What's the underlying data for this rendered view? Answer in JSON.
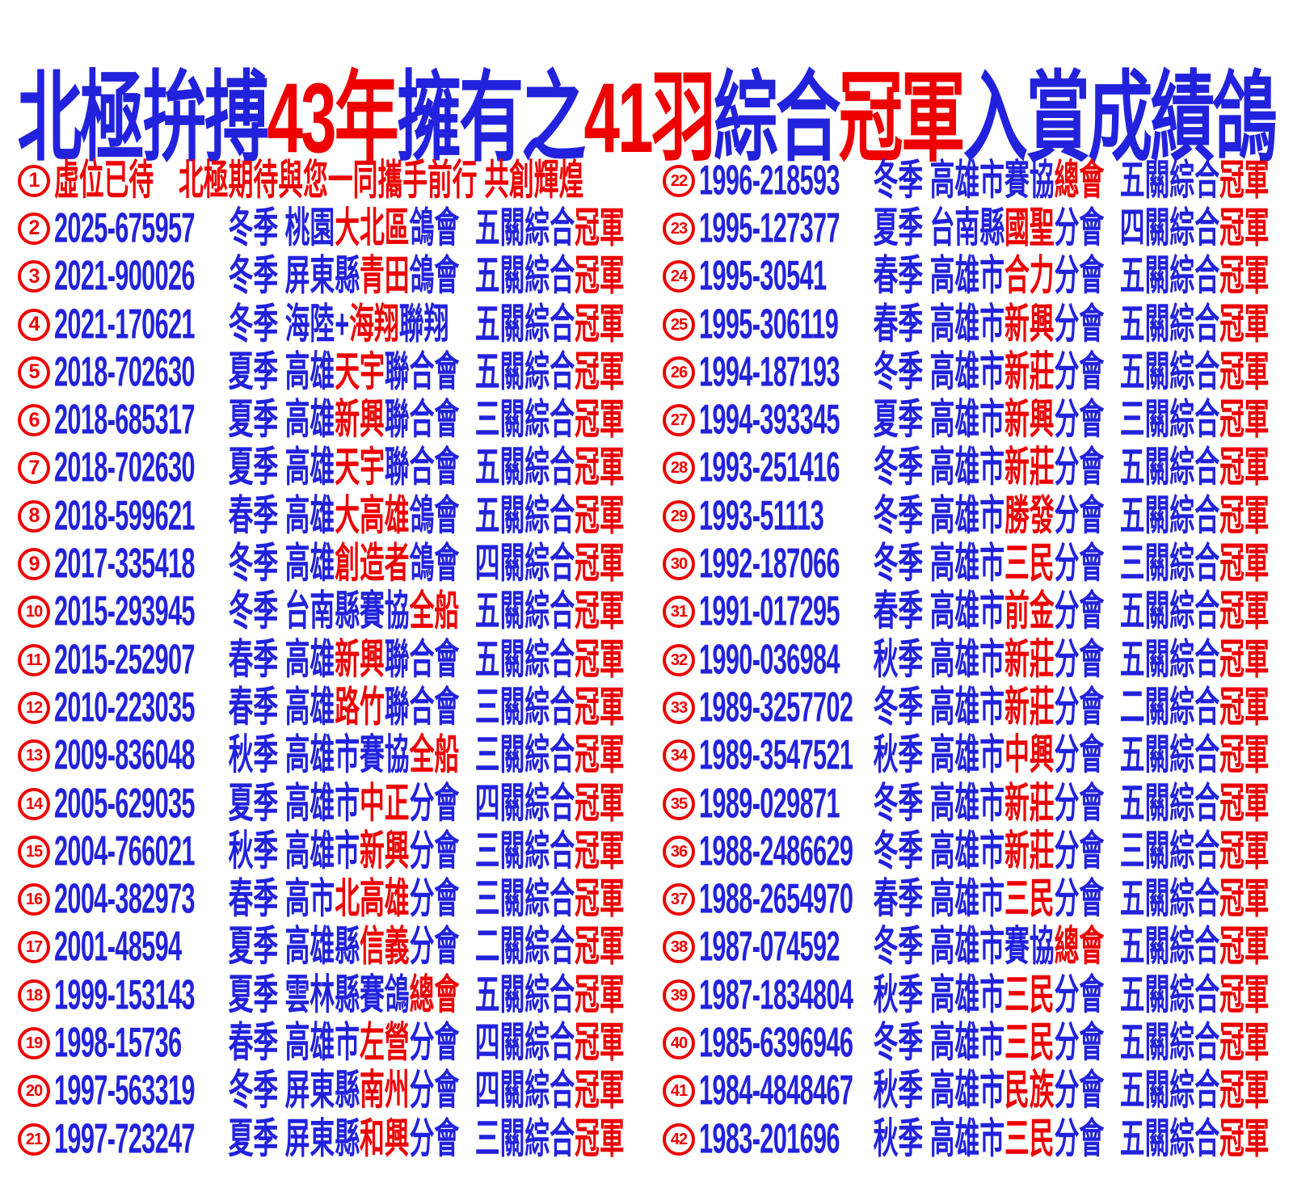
{
  "colors": {
    "blue": "#2222dd",
    "red": "#ee0000",
    "background": "#ffffff"
  },
  "title": {
    "segments": [
      {
        "t": "北極拚搏",
        "c": "b"
      },
      {
        "t": "43年",
        "c": "r"
      },
      {
        "t": "擁有之",
        "c": "b"
      },
      {
        "t": "41羽",
        "c": "r"
      },
      {
        "t": "綜合",
        "c": "b"
      },
      {
        "t": "冠軍",
        "c": "r"
      },
      {
        "t": "入賞成績鴿",
        "c": "b"
      }
    ]
  },
  "rows": [
    {
      "num": "1",
      "wide": [
        {
          "t": "虛位已待　北極期待與您一同攜手前行 共創輝煌",
          "c": "r"
        }
      ]
    },
    {
      "num": "2",
      "id": "2025-675957",
      "season": "冬季",
      "club": [
        {
          "t": "桃園",
          "c": "b"
        },
        {
          "t": "大北區",
          "c": "r"
        },
        {
          "t": "鴿會",
          "c": "b"
        }
      ],
      "award": [
        {
          "t": "五關綜合",
          "c": "b"
        },
        {
          "t": "冠軍",
          "c": "r"
        }
      ]
    },
    {
      "num": "3",
      "id": "2021-900026",
      "season": "冬季",
      "club": [
        {
          "t": "屏東縣",
          "c": "b"
        },
        {
          "t": "青田",
          "c": "r"
        },
        {
          "t": "鴿會",
          "c": "b"
        }
      ],
      "award": [
        {
          "t": "五關綜合",
          "c": "b"
        },
        {
          "t": "冠軍",
          "c": "r"
        }
      ]
    },
    {
      "num": "4",
      "id": "2021-170621",
      "season": "冬季",
      "club": [
        {
          "t": "海陸+",
          "c": "b"
        },
        {
          "t": "海翔",
          "c": "r"
        },
        {
          "t": "聯翔",
          "c": "b"
        }
      ],
      "award": [
        {
          "t": "五關綜合",
          "c": "b"
        },
        {
          "t": "冠軍",
          "c": "r"
        }
      ]
    },
    {
      "num": "5",
      "id": "2018-702630",
      "season": "夏季",
      "club": [
        {
          "t": "高雄",
          "c": "b"
        },
        {
          "t": "天宇",
          "c": "r"
        },
        {
          "t": "聯合會",
          "c": "b"
        }
      ],
      "award": [
        {
          "t": "五關綜合",
          "c": "b"
        },
        {
          "t": "冠軍",
          "c": "r"
        }
      ]
    },
    {
      "num": "6",
      "id": "2018-685317",
      "season": "夏季",
      "club": [
        {
          "t": "高雄",
          "c": "b"
        },
        {
          "t": "新興",
          "c": "r"
        },
        {
          "t": "聯合會",
          "c": "b"
        }
      ],
      "award": [
        {
          "t": "三關綜合",
          "c": "b"
        },
        {
          "t": "冠軍",
          "c": "r"
        }
      ]
    },
    {
      "num": "7",
      "id": "2018-702630",
      "season": "夏季",
      "club": [
        {
          "t": "高雄",
          "c": "b"
        },
        {
          "t": "天宇",
          "c": "r"
        },
        {
          "t": "聯合會",
          "c": "b"
        }
      ],
      "award": [
        {
          "t": "五關綜合",
          "c": "b"
        },
        {
          "t": "冠軍",
          "c": "r"
        }
      ]
    },
    {
      "num": "8",
      "id": "2018-599621",
      "season": "春季",
      "club": [
        {
          "t": "高雄",
          "c": "b"
        },
        {
          "t": "大高雄",
          "c": "r"
        },
        {
          "t": "鴿會",
          "c": "b"
        }
      ],
      "award": [
        {
          "t": "五關綜合",
          "c": "b"
        },
        {
          "t": "冠軍",
          "c": "r"
        }
      ]
    },
    {
      "num": "9",
      "id": "2017-335418",
      "season": "冬季",
      "club": [
        {
          "t": "高雄",
          "c": "b"
        },
        {
          "t": "創造者",
          "c": "r"
        },
        {
          "t": "鴿會",
          "c": "b"
        }
      ],
      "award": [
        {
          "t": "四關綜合",
          "c": "b"
        },
        {
          "t": "冠軍",
          "c": "r"
        }
      ]
    },
    {
      "num": "10",
      "id": "2015-293945",
      "season": "冬季",
      "club": [
        {
          "t": "台南縣賽協",
          "c": "b"
        },
        {
          "t": "全船",
          "c": "r"
        }
      ],
      "award": [
        {
          "t": "五關綜合",
          "c": "b"
        },
        {
          "t": "冠軍",
          "c": "r"
        }
      ]
    },
    {
      "num": "11",
      "id": "2015-252907",
      "season": "春季",
      "club": [
        {
          "t": "高雄",
          "c": "b"
        },
        {
          "t": "新興",
          "c": "r"
        },
        {
          "t": "聯合會",
          "c": "b"
        }
      ],
      "award": [
        {
          "t": "五關綜合",
          "c": "b"
        },
        {
          "t": "冠軍",
          "c": "r"
        }
      ]
    },
    {
      "num": "12",
      "id": "2010-223035",
      "season": "春季",
      "club": [
        {
          "t": "高雄",
          "c": "b"
        },
        {
          "t": "路竹",
          "c": "r"
        },
        {
          "t": "聯合會",
          "c": "b"
        }
      ],
      "award": [
        {
          "t": "三關綜合",
          "c": "b"
        },
        {
          "t": "冠軍",
          "c": "r"
        }
      ]
    },
    {
      "num": "13",
      "id": "2009-836048",
      "season": "秋季",
      "club": [
        {
          "t": "高雄市賽協",
          "c": "b"
        },
        {
          "t": "全船",
          "c": "r"
        }
      ],
      "award": [
        {
          "t": "三關綜合",
          "c": "b"
        },
        {
          "t": "冠軍",
          "c": "r"
        }
      ]
    },
    {
      "num": "14",
      "id": "2005-629035",
      "season": "夏季",
      "club": [
        {
          "t": "高雄市",
          "c": "b"
        },
        {
          "t": "中正",
          "c": "r"
        },
        {
          "t": "分會",
          "c": "b"
        }
      ],
      "award": [
        {
          "t": "四關綜合",
          "c": "b"
        },
        {
          "t": "冠軍",
          "c": "r"
        }
      ]
    },
    {
      "num": "15",
      "id": "2004-766021",
      "season": "秋季",
      "club": [
        {
          "t": "高雄市",
          "c": "b"
        },
        {
          "t": "新興",
          "c": "r"
        },
        {
          "t": "分會",
          "c": "b"
        }
      ],
      "award": [
        {
          "t": "三關綜合",
          "c": "b"
        },
        {
          "t": "冠軍",
          "c": "r"
        }
      ]
    },
    {
      "num": "16",
      "id": "2004-382973",
      "season": "春季",
      "club": [
        {
          "t": "高市",
          "c": "b"
        },
        {
          "t": "北高雄",
          "c": "r"
        },
        {
          "t": "分會",
          "c": "b"
        }
      ],
      "award": [
        {
          "t": "三關綜合",
          "c": "b"
        },
        {
          "t": "冠軍",
          "c": "r"
        }
      ]
    },
    {
      "num": "17",
      "id": "2001-48594",
      "season": "夏季",
      "club": [
        {
          "t": "高雄縣",
          "c": "b"
        },
        {
          "t": "信義",
          "c": "r"
        },
        {
          "t": "分會",
          "c": "b"
        }
      ],
      "award": [
        {
          "t": "二關綜合",
          "c": "b"
        },
        {
          "t": "冠軍",
          "c": "r"
        }
      ]
    },
    {
      "num": "18",
      "id": "1999-153143",
      "season": "夏季",
      "club": [
        {
          "t": "雲林縣賽鴿",
          "c": "b"
        },
        {
          "t": "總會",
          "c": "r"
        }
      ],
      "award": [
        {
          "t": "五關綜合",
          "c": "b"
        },
        {
          "t": "冠軍",
          "c": "r"
        }
      ]
    },
    {
      "num": "19",
      "id": "1998-15736",
      "season": "春季",
      "club": [
        {
          "t": "高雄市",
          "c": "b"
        },
        {
          "t": "左營",
          "c": "r"
        },
        {
          "t": "分會",
          "c": "b"
        }
      ],
      "award": [
        {
          "t": "四關綜合",
          "c": "b"
        },
        {
          "t": "冠軍",
          "c": "r"
        }
      ]
    },
    {
      "num": "20",
      "id": "1997-563319",
      "season": "冬季",
      "club": [
        {
          "t": "屏東縣",
          "c": "b"
        },
        {
          "t": "南州",
          "c": "r"
        },
        {
          "t": "分會",
          "c": "b"
        }
      ],
      "award": [
        {
          "t": "四關綜合",
          "c": "b"
        },
        {
          "t": "冠軍",
          "c": "r"
        }
      ]
    },
    {
      "num": "21",
      "id": "1997-723247",
      "season": "夏季",
      "club": [
        {
          "t": "屏東縣",
          "c": "b"
        },
        {
          "t": "和興",
          "c": "r"
        },
        {
          "t": "分會",
          "c": "b"
        }
      ],
      "award": [
        {
          "t": "三關綜合",
          "c": "b"
        },
        {
          "t": "冠軍",
          "c": "r"
        }
      ]
    },
    {
      "num": "22",
      "id": "1996-218593",
      "season": "冬季",
      "club": [
        {
          "t": "高雄市賽協",
          "c": "b"
        },
        {
          "t": "總會",
          "c": "r"
        }
      ],
      "award": [
        {
          "t": "五關綜合",
          "c": "b"
        },
        {
          "t": "冠軍",
          "c": "r"
        }
      ]
    },
    {
      "num": "23",
      "id": "1995-127377",
      "season": "夏季",
      "club": [
        {
          "t": "台南縣",
          "c": "b"
        },
        {
          "t": "國聖",
          "c": "r"
        },
        {
          "t": "分會",
          "c": "b"
        }
      ],
      "award": [
        {
          "t": "四關綜合",
          "c": "b"
        },
        {
          "t": "冠軍",
          "c": "r"
        }
      ]
    },
    {
      "num": "24",
      "id": "1995-30541",
      "season": "春季",
      "club": [
        {
          "t": "高雄市",
          "c": "b"
        },
        {
          "t": "合力",
          "c": "r"
        },
        {
          "t": "分會",
          "c": "b"
        }
      ],
      "award": [
        {
          "t": "五關綜合",
          "c": "b"
        },
        {
          "t": "冠軍",
          "c": "r"
        }
      ]
    },
    {
      "num": "25",
      "id": "1995-306119",
      "season": "春季",
      "club": [
        {
          "t": "高雄市",
          "c": "b"
        },
        {
          "t": "新興",
          "c": "r"
        },
        {
          "t": "分會",
          "c": "b"
        }
      ],
      "award": [
        {
          "t": "五關綜合",
          "c": "b"
        },
        {
          "t": "冠軍",
          "c": "r"
        }
      ]
    },
    {
      "num": "26",
      "id": "1994-187193",
      "season": "冬季",
      "club": [
        {
          "t": "高雄市",
          "c": "b"
        },
        {
          "t": "新莊",
          "c": "r"
        },
        {
          "t": "分會",
          "c": "b"
        }
      ],
      "award": [
        {
          "t": "五關綜合",
          "c": "b"
        },
        {
          "t": "冠軍",
          "c": "r"
        }
      ]
    },
    {
      "num": "27",
      "id": "1994-393345",
      "season": "夏季",
      "club": [
        {
          "t": "高雄市",
          "c": "b"
        },
        {
          "t": "新興",
          "c": "r"
        },
        {
          "t": "分會",
          "c": "b"
        }
      ],
      "award": [
        {
          "t": "三關綜合",
          "c": "b"
        },
        {
          "t": "冠軍",
          "c": "r"
        }
      ]
    },
    {
      "num": "28",
      "id": "1993-251416",
      "season": "冬季",
      "club": [
        {
          "t": "高雄市",
          "c": "b"
        },
        {
          "t": "新莊",
          "c": "r"
        },
        {
          "t": "分會",
          "c": "b"
        }
      ],
      "award": [
        {
          "t": "五關綜合",
          "c": "b"
        },
        {
          "t": "冠軍",
          "c": "r"
        }
      ]
    },
    {
      "num": "29",
      "id": "1993-51113",
      "season": "冬季",
      "club": [
        {
          "t": "高雄市",
          "c": "b"
        },
        {
          "t": "勝發",
          "c": "r"
        },
        {
          "t": "分會",
          "c": "b"
        }
      ],
      "award": [
        {
          "t": "五關綜合",
          "c": "b"
        },
        {
          "t": "冠軍",
          "c": "r"
        }
      ]
    },
    {
      "num": "30",
      "id": "1992-187066",
      "season": "冬季",
      "club": [
        {
          "t": "高雄市",
          "c": "b"
        },
        {
          "t": "三民",
          "c": "r"
        },
        {
          "t": "分會",
          "c": "b"
        }
      ],
      "award": [
        {
          "t": "三關綜合",
          "c": "b"
        },
        {
          "t": "冠軍",
          "c": "r"
        }
      ]
    },
    {
      "num": "31",
      "id": "1991-017295",
      "season": "春季",
      "club": [
        {
          "t": "高雄市",
          "c": "b"
        },
        {
          "t": "前金",
          "c": "r"
        },
        {
          "t": "分會",
          "c": "b"
        }
      ],
      "award": [
        {
          "t": "五關綜合",
          "c": "b"
        },
        {
          "t": "冠軍",
          "c": "r"
        }
      ]
    },
    {
      "num": "32",
      "id": "1990-036984",
      "season": "秋季",
      "club": [
        {
          "t": "高雄市",
          "c": "b"
        },
        {
          "t": "新莊",
          "c": "r"
        },
        {
          "t": "分會",
          "c": "b"
        }
      ],
      "award": [
        {
          "t": "五關綜合",
          "c": "b"
        },
        {
          "t": "冠軍",
          "c": "r"
        }
      ]
    },
    {
      "num": "33",
      "id": "1989-3257702",
      "season": "冬季",
      "club": [
        {
          "t": "高雄市",
          "c": "b"
        },
        {
          "t": "新莊",
          "c": "r"
        },
        {
          "t": "分會",
          "c": "b"
        }
      ],
      "award": [
        {
          "t": "二關綜合",
          "c": "b"
        },
        {
          "t": "冠軍",
          "c": "r"
        }
      ]
    },
    {
      "num": "34",
      "id": "1989-3547521",
      "season": "秋季",
      "club": [
        {
          "t": "高雄市",
          "c": "b"
        },
        {
          "t": "中興",
          "c": "r"
        },
        {
          "t": "分會",
          "c": "b"
        }
      ],
      "award": [
        {
          "t": "五關綜合",
          "c": "b"
        },
        {
          "t": "冠軍",
          "c": "r"
        }
      ]
    },
    {
      "num": "35",
      "id": "1989-029871",
      "season": "冬季",
      "club": [
        {
          "t": "高雄市",
          "c": "b"
        },
        {
          "t": "新莊",
          "c": "r"
        },
        {
          "t": "分會",
          "c": "b"
        }
      ],
      "award": [
        {
          "t": "五關綜合",
          "c": "b"
        },
        {
          "t": "冠軍",
          "c": "r"
        }
      ]
    },
    {
      "num": "36",
      "id": "1988-2486629",
      "season": "冬季",
      "club": [
        {
          "t": "高雄市",
          "c": "b"
        },
        {
          "t": "新莊",
          "c": "r"
        },
        {
          "t": "分會",
          "c": "b"
        }
      ],
      "award": [
        {
          "t": "三關綜合",
          "c": "b"
        },
        {
          "t": "冠軍",
          "c": "r"
        }
      ]
    },
    {
      "num": "37",
      "id": "1988-2654970",
      "season": "春季",
      "club": [
        {
          "t": "高雄市",
          "c": "b"
        },
        {
          "t": "三民",
          "c": "r"
        },
        {
          "t": "分會",
          "c": "b"
        }
      ],
      "award": [
        {
          "t": "五關綜合",
          "c": "b"
        },
        {
          "t": "冠軍",
          "c": "r"
        }
      ]
    },
    {
      "num": "38",
      "id": "1987-074592",
      "season": "冬季",
      "club": [
        {
          "t": "高雄市賽協",
          "c": "b"
        },
        {
          "t": "總會",
          "c": "r"
        }
      ],
      "award": [
        {
          "t": "五關綜合",
          "c": "b"
        },
        {
          "t": "冠軍",
          "c": "r"
        }
      ]
    },
    {
      "num": "39",
      "id": "1987-1834804",
      "season": "秋季",
      "club": [
        {
          "t": "高雄市",
          "c": "b"
        },
        {
          "t": "三民",
          "c": "r"
        },
        {
          "t": "分會",
          "c": "b"
        }
      ],
      "award": [
        {
          "t": "五關綜合",
          "c": "b"
        },
        {
          "t": "冠軍",
          "c": "r"
        }
      ]
    },
    {
      "num": "40",
      "id": "1985-6396946",
      "season": "冬季",
      "club": [
        {
          "t": "高雄市",
          "c": "b"
        },
        {
          "t": "三民",
          "c": "r"
        },
        {
          "t": "分會",
          "c": "b"
        }
      ],
      "award": [
        {
          "t": "五關綜合",
          "c": "b"
        },
        {
          "t": "冠軍",
          "c": "r"
        }
      ]
    },
    {
      "num": "41",
      "id": "1984-4848467",
      "season": "秋季",
      "club": [
        {
          "t": "高雄市",
          "c": "b"
        },
        {
          "t": "民族",
          "c": "r"
        },
        {
          "t": "分會",
          "c": "b"
        }
      ],
      "award": [
        {
          "t": "五關綜合",
          "c": "b"
        },
        {
          "t": "冠軍",
          "c": "r"
        }
      ]
    },
    {
      "num": "42",
      "id": "1983-201696",
      "season": "秋季",
      "club": [
        {
          "t": "高雄市",
          "c": "b"
        },
        {
          "t": "三民",
          "c": "r"
        },
        {
          "t": "分會",
          "c": "b"
        }
      ],
      "award": [
        {
          "t": "五關綜合",
          "c": "b"
        },
        {
          "t": "冠軍",
          "c": "r"
        }
      ]
    }
  ]
}
